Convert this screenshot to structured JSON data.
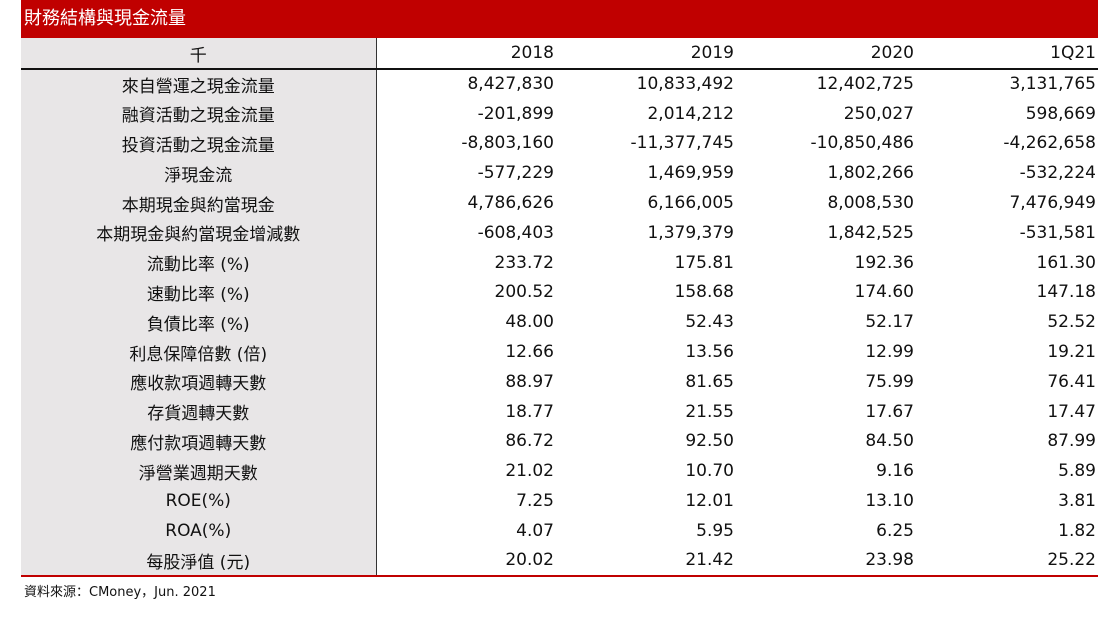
{
  "title": "財務結構與現金流量",
  "header": {
    "label": "千",
    "cols": [
      "2018",
      "2019",
      "2020",
      "1Q21"
    ]
  },
  "rows": [
    {
      "label": "來自營運之現金流量",
      "values": [
        "8,427,830",
        "10,833,492",
        "12,402,725",
        "3,131,765"
      ]
    },
    {
      "label": "融資活動之現金流量",
      "values": [
        "-201,899",
        "2,014,212",
        "250,027",
        "598,669"
      ]
    },
    {
      "label": "投資活動之現金流量",
      "values": [
        "-8,803,160",
        "-11,377,745",
        "-10,850,486",
        "-4,262,658"
      ]
    },
    {
      "label": "淨現金流",
      "values": [
        "-577,229",
        "1,469,959",
        "1,802,266",
        "-532,224"
      ]
    },
    {
      "label": "本期現金與約當現金",
      "values": [
        "4,786,626",
        "6,166,005",
        "8,008,530",
        "7,476,949"
      ]
    },
    {
      "label": "本期現金與約當現金增減數",
      "values": [
        "-608,403",
        "1,379,379",
        "1,842,525",
        "-531,581"
      ]
    },
    {
      "label": "流動比率 (%)",
      "values": [
        "233.72",
        "175.81",
        "192.36",
        "161.30"
      ]
    },
    {
      "label": "速動比率 (%)",
      "values": [
        "200.52",
        "158.68",
        "174.60",
        "147.18"
      ]
    },
    {
      "label": "負債比率 (%)",
      "values": [
        "48.00",
        "52.43",
        "52.17",
        "52.52"
      ]
    },
    {
      "label": "利息保障倍數 (倍)",
      "values": [
        "12.66",
        "13.56",
        "12.99",
        "19.21"
      ]
    },
    {
      "label": "應收款項週轉天數",
      "values": [
        "88.97",
        "81.65",
        "75.99",
        "76.41"
      ]
    },
    {
      "label": "存貨週轉天數",
      "values": [
        "18.77",
        "21.55",
        "17.67",
        "17.47"
      ]
    },
    {
      "label": "應付款項週轉天數",
      "values": [
        "86.72",
        "92.50",
        "84.50",
        "87.99"
      ]
    },
    {
      "label": "淨營業週期天數",
      "values": [
        "21.02",
        "10.70",
        "9.16",
        "5.89"
      ]
    },
    {
      "label": "ROE(%)",
      "values": [
        "7.25",
        "12.01",
        "13.10",
        "3.81"
      ]
    },
    {
      "label": "ROA(%)",
      "values": [
        "4.07",
        "5.95",
        "6.25",
        "1.82"
      ]
    },
    {
      "label": "每股淨值 (元)",
      "values": [
        "20.02",
        "21.42",
        "23.98",
        "25.22"
      ]
    }
  ],
  "source": "資料來源：CMoney，Jun. 2021",
  "colors": {
    "title_bg": "#c00000",
    "label_bg": "#e8e6e7"
  }
}
